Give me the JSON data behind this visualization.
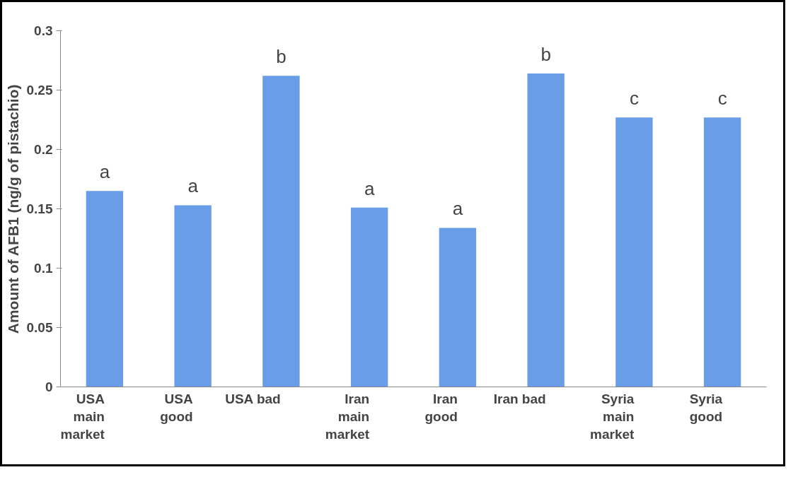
{
  "chart_data": {
    "type": "bar",
    "ylabel": "Amount of AFB1 (ng/g of pistachio)",
    "categories": [
      "USA\nmain\nmarket",
      "USA\ngood",
      "USA bad",
      "Iran\nmain\nmarket",
      "Iran\ngood",
      "Iran bad",
      "Syria\nmain\nmarket",
      "Syria\ngood"
    ],
    "values": [
      0.165,
      0.153,
      0.262,
      0.151,
      0.134,
      0.264,
      0.227,
      0.227
    ],
    "color": "#6a9de8",
    "ylim": [
      0,
      0.3
    ],
    "yticks": [
      0,
      0.05,
      0.1,
      0.15,
      0.2,
      0.25,
      0.3
    ],
    "grid": false,
    "annotations": [
      "a",
      "a",
      "b",
      "a",
      "a",
      "b",
      "c",
      "c"
    ]
  }
}
